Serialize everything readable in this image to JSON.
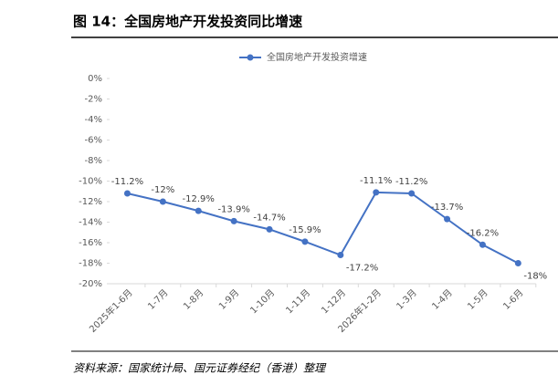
{
  "title": "图 14：全国房地产开发投资同比增速",
  "source": "资料来源：国家统计局、国元证券经纪（香港）整理",
  "chart_data": {
    "type": "line",
    "categories": [
      "2025年1-6月",
      "1-7月",
      "1-8月",
      "1-9月",
      "1-10月",
      "1-11月",
      "1-12月",
      "2026年1-2月",
      "1-3月",
      "1-4月",
      "1-5月",
      "1-6月"
    ],
    "series": [
      {
        "name": "全国房地产开发投资增速",
        "color": "#4472c4",
        "values": [
          -11.2,
          -12,
          -12.9,
          -13.9,
          -14.7,
          -15.9,
          -17.2,
          -11.1,
          -11.2,
          -13.7,
          -16.2,
          -18
        ],
        "value_labels": [
          "-11.2%",
          "-12%",
          "-12.9%",
          "-13.9%",
          "-14.7%",
          "-15.9%",
          "-17.2%",
          "-11.1%",
          "-11.2%",
          "-13.7%",
          "-16.2%",
          "-18%"
        ]
      }
    ],
    "ylim": [
      -20,
      0
    ],
    "yticks": [
      {
        "value": 0,
        "label": "0%"
      },
      {
        "value": -2,
        "label": "-2%"
      },
      {
        "value": -4,
        "label": "-4%"
      },
      {
        "value": -6,
        "label": "-6%"
      },
      {
        "value": -8,
        "label": "-8%"
      },
      {
        "value": -10,
        "label": "-10%"
      },
      {
        "value": -12,
        "label": "-12%"
      },
      {
        "value": -14,
        "label": "-14%"
      },
      {
        "value": -16,
        "label": "-16%"
      },
      {
        "value": -18,
        "label": "-18%"
      },
      {
        "value": -20,
        "label": "-20%"
      }
    ],
    "legend": "top"
  }
}
